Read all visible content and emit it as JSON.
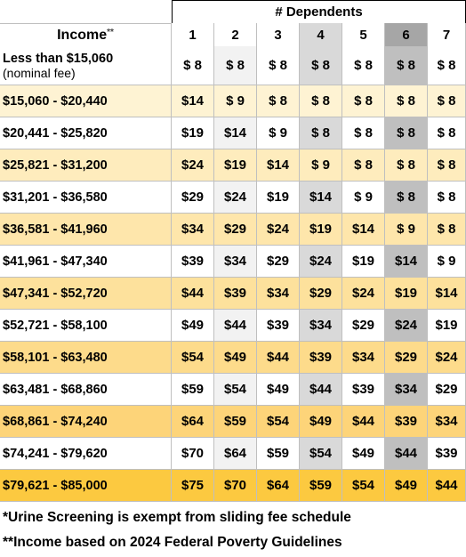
{
  "header": {
    "group_title": "# Dependents",
    "income_label": "Income",
    "income_note_mark": "**",
    "columns": [
      "1",
      "2",
      "3",
      "4",
      "5",
      "6",
      "7"
    ]
  },
  "table": {
    "rows": [
      {
        "income": "Less than $15,060",
        "income_sub": "(nominal fee)",
        "fees": [
          "$ 8",
          "$ 8",
          "$ 8",
          "$ 8",
          "$ 8",
          "$ 8",
          "$ 8"
        ]
      },
      {
        "income": "$15,060 - $20,440",
        "fees": [
          "$14",
          "$ 9",
          "$ 8",
          "$ 8",
          "$ 8",
          "$ 8",
          "$ 8"
        ]
      },
      {
        "income": "$20,441 - $25,820",
        "fees": [
          "$19",
          "$14",
          "$ 9",
          "$ 8",
          "$ 8",
          "$ 8",
          "$ 8"
        ]
      },
      {
        "income": "$25,821 - $31,200",
        "fees": [
          "$24",
          "$19",
          "$14",
          "$ 9",
          "$ 8",
          "$ 8",
          "$ 8"
        ]
      },
      {
        "income": "$31,201 - $36,580",
        "fees": [
          "$29",
          "$24",
          "$19",
          "$14",
          "$ 9",
          "$ 8",
          "$ 8"
        ]
      },
      {
        "income": "$36,581 - $41,960",
        "fees": [
          "$34",
          "$29",
          "$24",
          "$19",
          "$14",
          "$ 9",
          "$ 8"
        ]
      },
      {
        "income": "$41,961 - $47,340",
        "fees": [
          "$39",
          "$34",
          "$29",
          "$24",
          "$19",
          "$14",
          "$ 9"
        ]
      },
      {
        "income": "$47,341 - $52,720",
        "fees": [
          "$44",
          "$39",
          "$34",
          "$29",
          "$24",
          "$19",
          "$14"
        ]
      },
      {
        "income": "$52,721 - $58,100",
        "fees": [
          "$49",
          "$44",
          "$39",
          "$34",
          "$29",
          "$24",
          "$19"
        ]
      },
      {
        "income": "$58,101 - $63,480",
        "fees": [
          "$54",
          "$49",
          "$44",
          "$39",
          "$34",
          "$29",
          "$24"
        ]
      },
      {
        "income": "$63,481 - $68,860",
        "fees": [
          "$59",
          "$54",
          "$49",
          "$44",
          "$39",
          "$34",
          "$29"
        ]
      },
      {
        "income": "$68,861 - $74,240",
        "fees": [
          "$64",
          "$59",
          "$54",
          "$49",
          "$44",
          "$39",
          "$34"
        ]
      },
      {
        "income": "$74,241 - $79,620",
        "fees": [
          "$70",
          "$64",
          "$59",
          "$54",
          "$49",
          "$44",
          "$39"
        ]
      },
      {
        "income": "$79,621 - $85,000",
        "fees": [
          "$75",
          "$70",
          "$64",
          "$59",
          "$54",
          "$49",
          "$44"
        ]
      }
    ]
  },
  "footnotes": [
    "*Urine Screening is exempt from sliding fee schedule",
    "**Income based on 2024 Federal Poverty Guidelines"
  ]
}
